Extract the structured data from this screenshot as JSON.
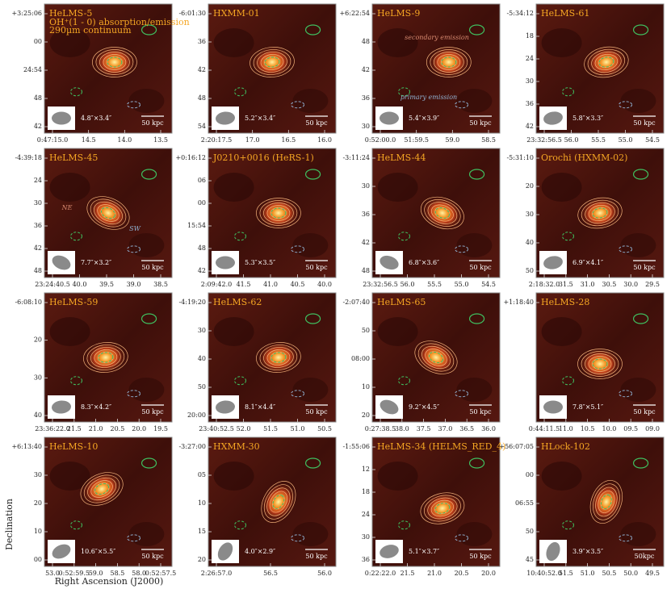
{
  "figure": {
    "y_axis_label": "Declination",
    "x_axis_label": "Right Ascension (J2000)",
    "panels": [
      {
        "title": "HeLMS-5",
        "legend": [
          "OH⁺(1 - 0) absorption/emission",
          "290µm continuum"
        ],
        "yticks": [
          "+3:25:06",
          "00",
          "24:54",
          "48",
          "42"
        ],
        "xticks": [
          "0:47:15.0",
          "14.5",
          "14.0",
          "13.5"
        ],
        "beam": "4.8″×3.4″",
        "scale": "50 kpc"
      },
      {
        "title": "HXMM-01",
        "yticks": [
          "-6:01:30",
          "36",
          "42",
          "48",
          "54"
        ],
        "xticks": [
          "2:20:17.5",
          "17.0",
          "16.5",
          "16.0"
        ],
        "beam": "5.2″×3.4″",
        "scale": "50 kpc"
      },
      {
        "title": "HeLMS-9",
        "annotations": [
          "secondary emission",
          "primary emission"
        ],
        "yticks": [
          "+6:22:54",
          "48",
          "42",
          "36",
          "30"
        ],
        "xticks": [
          "0:52:00.0",
          "51:59.5",
          "59.0",
          "58.5"
        ],
        "beam": "5.4″×3.9″",
        "scale": "50 kpc"
      },
      {
        "title": "HeLMS-61",
        "yticks": [
          "-5:34:12",
          "18",
          "24",
          "30",
          "36",
          "42"
        ],
        "xticks": [
          "23:32:56.5",
          "56.0",
          "55.5",
          "55.0",
          "54.5"
        ],
        "beam": "5.8″×3.3″",
        "scale": "50 kpc"
      },
      {
        "title": "HeLMS-45",
        "annotations": [
          "NE",
          "SW"
        ],
        "yticks": [
          "-4:39:18",
          "24",
          "30",
          "36",
          "42",
          "48"
        ],
        "xticks": [
          "23:24:40.5",
          "40.0",
          "39.5",
          "39.0",
          "38.5"
        ],
        "beam": "7.7″×3.2″",
        "scale": "50 kpc"
      },
      {
        "title": "J0210+0016 (HeRS-1)",
        "yticks": [
          "+0:16:12",
          "06",
          "00",
          "15:54",
          "48",
          "42"
        ],
        "xticks": [
          "2:09:42.0",
          "41.5",
          "41.0",
          "40.5",
          "40.0"
        ],
        "beam": "5.3″×3.5″",
        "scale": "50 kpc"
      },
      {
        "title": "HeLMS-44",
        "yticks": [
          "-3:11:24",
          "30",
          "36",
          "42",
          "48"
        ],
        "xticks": [
          "23:32:56.5",
          "56.0",
          "55.5",
          "55.0",
          "54.5"
        ],
        "beam": "6.8″×3.6″",
        "scale": "50 kpc"
      },
      {
        "title": "Orochi (HXMM-02)",
        "yticks": [
          "-5:31:10",
          "20",
          "30",
          "40",
          "50"
        ],
        "xticks": [
          "2:18:32.0",
          "31.5",
          "31.0",
          "30.5",
          "30.0",
          "29.5"
        ],
        "beam": "6.9″×4.1″",
        "scale": "50 kpc"
      },
      {
        "title": "HeLMS-59",
        "yticks": [
          "-6:08:10",
          "20",
          "30",
          "40"
        ],
        "xticks": [
          "23:36:22.0",
          "21.5",
          "21.0",
          "20.5",
          "20.0",
          "19.5"
        ],
        "beam": "8.3″×4.2″",
        "scale": "50 kpc"
      },
      {
        "title": "HeLMS-62",
        "yticks": [
          "-4:19:20",
          "30",
          "40",
          "50",
          "20:00"
        ],
        "xticks": [
          "23:40:52.5",
          "52.0",
          "51.5",
          "51.0",
          "50.5"
        ],
        "beam": "8.1″×4.4″",
        "scale": "50 kpc"
      },
      {
        "title": "HeLMS-65",
        "yticks": [
          "-2:07:40",
          "50",
          "08:00",
          "10",
          "20"
        ],
        "xticks": [
          "0:27:38.5",
          "38.0",
          "37.5",
          "37.0",
          "36.5",
          "36.0"
        ],
        "beam": "9.2″×4.5″",
        "scale": "50 kpc"
      },
      {
        "title": "HeLMS-28",
        "yticks": [
          "+1:18:40"
        ],
        "xticks": [
          "0:44:11.5",
          "11.0",
          "10.5",
          "10.0",
          "09.5",
          "09.0"
        ],
        "beam": "7.8″×5.1″",
        "scale": "50 kpc"
      },
      {
        "title": "HeLMS-10",
        "yticks": [
          "+6:13:40",
          "30",
          "20",
          "10",
          "00"
        ],
        "xticks": [
          "53.0",
          "0:52:59.5",
          "59.0",
          "58.5",
          "58.0",
          "0:52:57.5"
        ],
        "beam": "10.6″×5.5″",
        "scale": "50 kpc"
      },
      {
        "title": "HXMM-30",
        "yticks": [
          "-3:27:00",
          "05",
          "10",
          "15",
          "20"
        ],
        "xticks": [
          "2:26:57.0",
          "56.5",
          "56.0"
        ],
        "beam": "4.0″×2.9″",
        "scale": "50 kpc"
      },
      {
        "title": "HeLMS-34 (HELMS_RED_4)",
        "yticks": [
          "-1:55:06",
          "12",
          "18",
          "24",
          "30",
          "36"
        ],
        "xticks": [
          "0:22:22.0",
          "21.5",
          "21.0",
          "20.5",
          "20.0"
        ],
        "beam": "5.1″×3.7″",
        "scale": "50 kpc"
      },
      {
        "title": "HLock-102",
        "yticks": [
          "+56:07:05",
          "00",
          "06:55",
          "50",
          "45"
        ],
        "xticks": [
          "10:40:52.0",
          "51.5",
          "51.0",
          "50.5",
          "50.0",
          "49.5"
        ],
        "beam": "3.9″×3.5″",
        "scale": "50kpc"
      }
    ]
  }
}
